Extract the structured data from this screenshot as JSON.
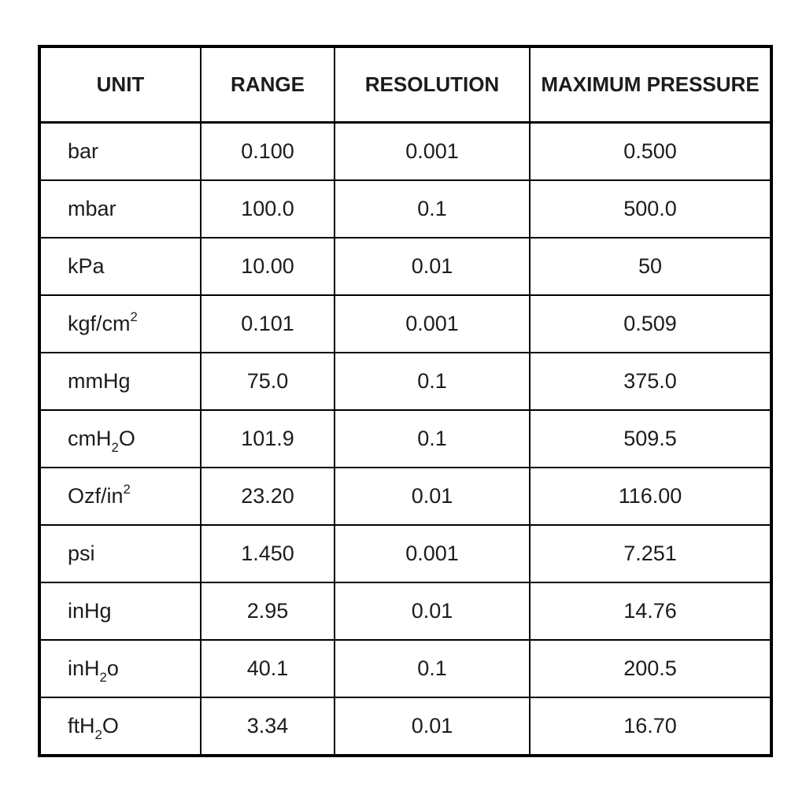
{
  "table": {
    "colors": {
      "border": "#000000",
      "text": "#1c1c1c",
      "background": "#ffffff"
    },
    "columns": [
      "UNIT",
      "RANGE",
      "RESOLUTION",
      "MAXIMUM PRESSURE"
    ],
    "rows": [
      {
        "unit": [
          {
            "text": "bar"
          }
        ],
        "range": "0.100",
        "resolution": "0.001",
        "max_pressure": "0.500"
      },
      {
        "unit": [
          {
            "text": "mbar"
          }
        ],
        "range": "100.0",
        "resolution": "0.1",
        "max_pressure": "500.0"
      },
      {
        "unit": [
          {
            "text": "kPa"
          }
        ],
        "range": "10.00",
        "resolution": "0.01",
        "max_pressure": "50"
      },
      {
        "unit": [
          {
            "text": "kgf/cm"
          },
          {
            "text": "2",
            "script": "sup"
          }
        ],
        "range": "0.101",
        "resolution": "0.001",
        "max_pressure": "0.509"
      },
      {
        "unit": [
          {
            "text": "mmHg"
          }
        ],
        "range": "75.0",
        "resolution": "0.1",
        "max_pressure": "375.0"
      },
      {
        "unit": [
          {
            "text": "cmH"
          },
          {
            "text": "2",
            "script": "sub"
          },
          {
            "text": "O"
          }
        ],
        "range": "101.9",
        "resolution": "0.1",
        "max_pressure": "509.5"
      },
      {
        "unit": [
          {
            "text": "Ozf/in"
          },
          {
            "text": "2",
            "script": "sup"
          }
        ],
        "range": "23.20",
        "resolution": "0.01",
        "max_pressure": "116.00"
      },
      {
        "unit": [
          {
            "text": "psi"
          }
        ],
        "range": "1.450",
        "resolution": "0.001",
        "max_pressure": "7.251"
      },
      {
        "unit": [
          {
            "text": "inHg"
          }
        ],
        "range": "2.95",
        "resolution": "0.01",
        "max_pressure": "14.76"
      },
      {
        "unit": [
          {
            "text": "inH"
          },
          {
            "text": "2",
            "script": "sub"
          },
          {
            "text": "o"
          }
        ],
        "range": "40.1",
        "resolution": "0.1",
        "max_pressure": "200.5"
      },
      {
        "unit": [
          {
            "text": "ftH"
          },
          {
            "text": "2",
            "script": "sub"
          },
          {
            "text": "O"
          }
        ],
        "range": "3.34",
        "resolution": "0.01",
        "max_pressure": "16.70"
      }
    ]
  }
}
